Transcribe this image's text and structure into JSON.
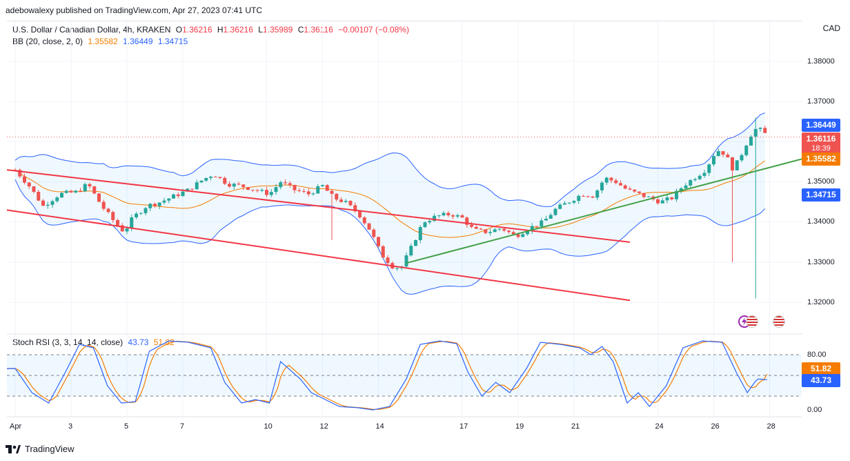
{
  "header": {
    "published": "adebowalexy published on TradingView.com, Apr 27, 2023 07:41 UTC",
    "currency": "CAD"
  },
  "legend": {
    "symbol": "U.S. Dollar / Canadian Dollar, 4h, KRAKEN",
    "ohlc": [
      {
        "k": "O",
        "v": "1.36216"
      },
      {
        "k": "H",
        "v": "1.36216"
      },
      {
        "k": "L",
        "v": "1.35989"
      },
      {
        "k": "C",
        "v": "1.36116"
      }
    ],
    "change": "−0.00107 (−0.08%)",
    "bb_label": "BB (20, close, 2, 0)",
    "bb_basis": "1.35582",
    "bb_upper": "1.36449",
    "bb_lower": "1.34715",
    "stoch_label": "Stoch RSI (3, 3, 14, 14, close)",
    "stoch_k": "43.73",
    "stoch_d": "51.82"
  },
  "price_tags": {
    "upper": "1.36449",
    "last": "1.36116",
    "countdown": "18:39",
    "basis": "1.35582",
    "lower": "1.34715"
  },
  "osc_tags": {
    "d": "51.82",
    "k": "43.73"
  },
  "brand": "TradingView",
  "colors": {
    "up": "#26a69a",
    "down": "#ef5350",
    "bb_basis": "#f57c00",
    "bb_band": "#2962ff",
    "channel": "#f23645",
    "trend": "#43a047",
    "stoch_k": "#2962ff",
    "stoch_d": "#f57c00"
  },
  "chart_data": [
    {
      "type": "candlestick",
      "title": "U.S. Dollar / Canadian Dollar, 4h, KRAKEN",
      "y_axis_ticks": [
        "1.38000",
        "1.37000",
        "1.36000",
        "1.35000",
        "1.34000",
        "1.33000",
        "1.32000"
      ],
      "ylim": [
        1.317,
        1.388
      ],
      "x_axis_ticks": [
        "Apr",
        "3",
        "5",
        "7",
        "10",
        "12",
        "14",
        "17",
        "19",
        "21",
        "24",
        "26",
        "28"
      ],
      "last_close": 1.36116,
      "bollinger": {
        "basis": 1.35582,
        "upper": 1.36449,
        "lower": 1.34715
      },
      "channel_lines": [
        {
          "from": [
            "Mar 31",
            1.353
          ],
          "to": [
            "Apr 23",
            1.335
          ]
        },
        {
          "from": [
            "Mar 31",
            1.343
          ],
          "to": [
            "Apr 23",
            1.3205
          ]
        }
      ],
      "trend_line": {
        "from": [
          "Apr 15",
          1.3298
        ],
        "to": [
          "Apr 27",
          1.3557
        ]
      }
    },
    {
      "type": "line",
      "title": "Stoch RSI (3, 3, 14, 14, close)",
      "y_axis_ticks": [
        "80.00",
        "0.00"
      ],
      "levels": [
        80,
        50,
        20
      ],
      "ylim": [
        0,
        100
      ],
      "series": [
        {
          "name": "K",
          "last": 43.73
        },
        {
          "name": "D",
          "last": 51.82
        }
      ]
    }
  ]
}
